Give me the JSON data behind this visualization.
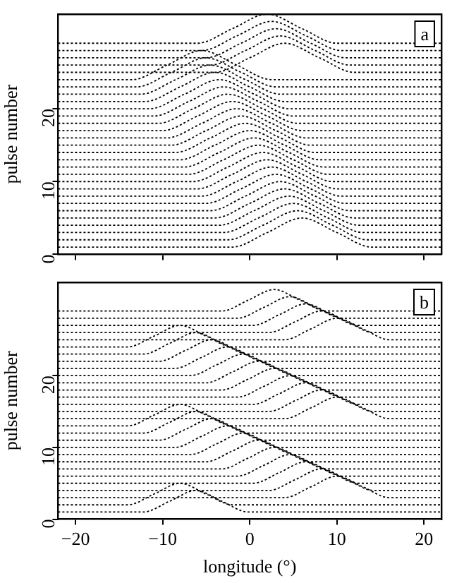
{
  "chart_data": [
    {
      "type": "line",
      "ylabel": "pulse number",
      "xlim": [
        -22,
        22
      ],
      "xticks": [
        -20,
        -10,
        0,
        10,
        20
      ],
      "ylim": [
        0,
        33
      ],
      "yticks": [
        0,
        10,
        20
      ],
      "tick_labels": "y",
      "grid": false,
      "legend": false,
      "marker": "none",
      "line_style": "dotted",
      "annotations": [
        "a"
      ],
      "series": [
        {
          "color": "#000000",
          "x": [
            -22,
            -2,
            2,
            6,
            10,
            14,
            22
          ],
          "values": [
            1,
            1,
            3,
            5,
            3,
            1,
            1
          ]
        },
        {
          "color": "#000000",
          "x": [
            -22,
            -2.5,
            1.5,
            5.5,
            9.5,
            13.5,
            22
          ],
          "values": [
            2,
            2,
            4,
            6,
            4,
            2,
            2
          ]
        },
        {
          "color": "#000000",
          "x": [
            -22,
            -3,
            1,
            5,
            9,
            13,
            22
          ],
          "values": [
            3,
            3,
            5,
            7,
            5,
            3,
            3
          ]
        },
        {
          "color": "#000000",
          "x": [
            -22,
            -3.5,
            0.5,
            4.5,
            8.5,
            12.5,
            22
          ],
          "values": [
            4,
            4,
            6,
            8,
            6,
            4,
            4
          ]
        },
        {
          "color": "#000000",
          "x": [
            -22,
            -4,
            0,
            4,
            8,
            12,
            22
          ],
          "values": [
            5,
            5,
            7,
            9,
            7,
            5,
            5
          ]
        },
        {
          "color": "#000000",
          "x": [
            -22,
            -4.5,
            -0.5,
            3.5,
            7.5,
            11.5,
            22
          ],
          "values": [
            6,
            6,
            8,
            10,
            8,
            6,
            6
          ]
        },
        {
          "color": "#000000",
          "x": [
            -22,
            -5,
            -1,
            3,
            7,
            11,
            22
          ],
          "values": [
            7,
            7,
            9,
            11,
            9,
            7,
            7
          ]
        },
        {
          "color": "#000000",
          "x": [
            -22,
            -5.5,
            -1.5,
            2.5,
            6.5,
            10.5,
            22
          ],
          "values": [
            8,
            8,
            10,
            12,
            10,
            8,
            8
          ]
        },
        {
          "color": "#000000",
          "x": [
            -22,
            -6,
            -2,
            2,
            6,
            10,
            22
          ],
          "values": [
            9,
            9,
            11,
            13,
            11,
            9,
            9
          ]
        },
        {
          "color": "#000000",
          "x": [
            -22,
            -6.5,
            -2.5,
            1.5,
            5.5,
            9.5,
            22
          ],
          "values": [
            10,
            10,
            12,
            14,
            12,
            10,
            10
          ]
        },
        {
          "color": "#000000",
          "x": [
            -22,
            -7,
            -3,
            1,
            5,
            9,
            22
          ],
          "values": [
            11,
            11,
            13,
            15,
            13,
            11,
            11
          ]
        },
        {
          "color": "#000000",
          "x": [
            -22,
            -7.5,
            -3.5,
            0.5,
            4.5,
            8.5,
            22
          ],
          "values": [
            12,
            12,
            14,
            16,
            14,
            12,
            12
          ]
        },
        {
          "color": "#000000",
          "x": [
            -22,
            -8,
            -4,
            0,
            4,
            8,
            22
          ],
          "values": [
            13,
            13,
            15,
            17,
            15,
            13,
            13
          ]
        },
        {
          "color": "#000000",
          "x": [
            -22,
            -8.5,
            -4.5,
            -0.5,
            3.5,
            7.5,
            22
          ],
          "values": [
            14,
            14,
            16,
            18,
            16,
            14,
            14
          ]
        },
        {
          "color": "#000000",
          "x": [
            -22,
            -9,
            -5,
            -1,
            3,
            7,
            22
          ],
          "values": [
            15,
            15,
            17,
            19,
            17,
            15,
            15
          ]
        },
        {
          "color": "#000000",
          "x": [
            -22,
            -9.5,
            -5.5,
            -1.5,
            2.5,
            6.5,
            22
          ],
          "values": [
            16,
            16,
            18,
            20,
            18,
            16,
            16
          ]
        },
        {
          "color": "#000000",
          "x": [
            -22,
            -10,
            -6,
            -2,
            2,
            6,
            22
          ],
          "values": [
            17,
            17,
            19,
            21,
            19,
            17,
            17
          ]
        },
        {
          "color": "#000000",
          "x": [
            -22,
            -10.5,
            -6.5,
            -2.5,
            1.5,
            5.5,
            22
          ],
          "values": [
            18,
            18,
            20,
            22,
            20,
            18,
            18
          ]
        },
        {
          "color": "#000000",
          "x": [
            -22,
            -11,
            -7,
            -3,
            1,
            5,
            22
          ],
          "values": [
            19,
            19,
            21,
            23,
            21,
            19,
            19
          ]
        },
        {
          "color": "#000000",
          "x": [
            -22,
            -11.5,
            -7.5,
            -3.5,
            0.5,
            4.5,
            22
          ],
          "values": [
            20,
            20,
            22,
            24,
            22,
            20,
            20
          ]
        },
        {
          "color": "#000000",
          "x": [
            -22,
            -12,
            -8,
            -4,
            0,
            4,
            22
          ],
          "values": [
            21,
            21,
            23,
            25,
            23,
            21,
            21
          ]
        },
        {
          "color": "#000000",
          "x": [
            -22,
            -12.5,
            -8.5,
            -4.5,
            -0.5,
            3.5,
            22
          ],
          "values": [
            22,
            22,
            24,
            26,
            24,
            22,
            22
          ]
        },
        {
          "color": "#000000",
          "x": [
            -22,
            -13,
            -9,
            -5,
            -1,
            3,
            22
          ],
          "values": [
            23,
            23,
            25,
            27,
            25,
            23,
            23
          ]
        },
        {
          "color": "#000000",
          "x": [
            -22,
            -13.5,
            -9.5,
            -5.5,
            -1.5,
            2.5,
            22
          ],
          "values": [
            24,
            24,
            26,
            28,
            26,
            24,
            24
          ]
        },
        {
          "color": "#000000",
          "x": [
            -22,
            -4,
            0,
            4,
            8,
            12,
            22
          ],
          "values": [
            25,
            25,
            27,
            29,
            27,
            25,
            25
          ]
        },
        {
          "color": "#000000",
          "x": [
            -22,
            -4.5,
            -0.5,
            3.5,
            7.5,
            11.5,
            22
          ],
          "values": [
            26,
            26,
            28,
            30,
            28,
            26,
            26
          ]
        },
        {
          "color": "#000000",
          "x": [
            -22,
            -5,
            -1,
            3,
            7,
            11,
            22
          ],
          "values": [
            27,
            27,
            29,
            31,
            29,
            27,
            27
          ]
        },
        {
          "color": "#000000",
          "x": [
            -22,
            -5.5,
            -1.5,
            2.5,
            6.5,
            10.5,
            22
          ],
          "values": [
            28,
            28,
            30,
            32,
            30,
            28,
            28
          ]
        },
        {
          "color": "#000000",
          "x": [
            -22,
            -6,
            -2,
            2,
            6,
            10,
            22
          ],
          "values": [
            29,
            29,
            31,
            33,
            31,
            29,
            29
          ]
        }
      ]
    },
    {
      "type": "line",
      "xlabel": "longitude (°)",
      "ylabel": "pulse number",
      "xlim": [
        -22,
        22
      ],
      "xticks": [
        -20,
        -10,
        0,
        10,
        20
      ],
      "ylim": [
        0,
        33
      ],
      "yticks": [
        0,
        10,
        20
      ],
      "grid": false,
      "legend": false,
      "marker": "none",
      "line_style": "dotted",
      "annotations": [
        "b"
      ],
      "series": [
        {
          "color": "#000000",
          "x": [
            -22,
            -12.2,
            -9.2,
            -6.2,
            -3.2,
            -0.2,
            22
          ],
          "values": [
            1,
            1,
            2.5,
            4,
            2.5,
            1,
            1
          ]
        },
        {
          "color": "#000000",
          "x": [
            -22,
            -14,
            -11,
            -8,
            -5,
            -2,
            22
          ],
          "values": [
            2,
            2,
            3.5,
            5,
            3.5,
            2,
            2
          ]
        },
        {
          "color": "#000000",
          "x": [
            -22,
            4,
            7,
            10,
            13,
            16,
            22
          ],
          "values": [
            3,
            3,
            4.5,
            6,
            4.5,
            3,
            3
          ]
        },
        {
          "color": "#000000",
          "x": [
            -22,
            2.2,
            5.2,
            8.2,
            11.2,
            14.2,
            22
          ],
          "values": [
            4,
            4,
            5.5,
            7,
            5.5,
            4,
            4
          ]
        },
        {
          "color": "#000000",
          "x": [
            -22,
            0.4,
            3.4,
            6.4,
            9.4,
            12.4,
            22
          ],
          "values": [
            5,
            5,
            6.5,
            8,
            6.5,
            5,
            5
          ]
        },
        {
          "color": "#000000",
          "x": [
            -22,
            -1.4,
            1.6,
            4.6,
            7.6,
            10.6,
            22
          ],
          "values": [
            6,
            6,
            7.5,
            9,
            7.5,
            6,
            6
          ]
        },
        {
          "color": "#000000",
          "x": [
            -22,
            -3.2,
            -0.2,
            2.8,
            5.8,
            8.8,
            22
          ],
          "values": [
            7,
            7,
            8.5,
            10,
            8.5,
            7,
            7
          ]
        },
        {
          "color": "#000000",
          "x": [
            -22,
            -5,
            -2,
            1,
            4,
            7,
            22
          ],
          "values": [
            8,
            8,
            9.5,
            11,
            9.5,
            8,
            8
          ]
        },
        {
          "color": "#000000",
          "x": [
            -22,
            -6.8,
            -3.8,
            -0.8,
            2.2,
            5.2,
            22
          ],
          "values": [
            9,
            9,
            10.5,
            12,
            10.5,
            9,
            9
          ]
        },
        {
          "color": "#000000",
          "x": [
            -22,
            -8.6,
            -5.6,
            -2.6,
            0.4,
            3.4,
            22
          ],
          "values": [
            10,
            10,
            11.5,
            13,
            11.5,
            10,
            10
          ]
        },
        {
          "color": "#000000",
          "x": [
            -22,
            -10.4,
            -7.4,
            -4.4,
            -1.4,
            1.6,
            22
          ],
          "values": [
            11,
            11,
            12.5,
            14,
            12.5,
            11,
            11
          ]
        },
        {
          "color": "#000000",
          "x": [
            -22,
            -12.2,
            -9.2,
            -6.2,
            -3.2,
            -0.2,
            22
          ],
          "values": [
            12,
            12,
            13.5,
            15,
            13.5,
            12,
            12
          ]
        },
        {
          "color": "#000000",
          "x": [
            -22,
            -14,
            -11,
            -8,
            -5,
            -2,
            22
          ],
          "values": [
            13,
            13,
            14.5,
            16,
            14.5,
            13,
            13
          ]
        },
        {
          "color": "#000000",
          "x": [
            -22,
            4,
            7,
            10,
            13,
            16,
            22
          ],
          "values": [
            14,
            14,
            15.5,
            17,
            15.5,
            14,
            14
          ]
        },
        {
          "color": "#000000",
          "x": [
            -22,
            2.2,
            5.2,
            8.2,
            11.2,
            14.2,
            22
          ],
          "values": [
            15,
            15,
            16.5,
            18,
            16.5,
            15,
            15
          ]
        },
        {
          "color": "#000000",
          "x": [
            -22,
            0.4,
            3.4,
            6.4,
            9.4,
            12.4,
            22
          ],
          "values": [
            16,
            16,
            17.5,
            19,
            17.5,
            16,
            16
          ]
        },
        {
          "color": "#000000",
          "x": [
            -22,
            -1.4,
            1.6,
            4.6,
            7.6,
            10.6,
            22
          ],
          "values": [
            17,
            17,
            18.5,
            20,
            18.5,
            17,
            17
          ]
        },
        {
          "color": "#000000",
          "x": [
            -22,
            -3.2,
            -0.2,
            2.8,
            5.8,
            8.8,
            22
          ],
          "values": [
            18,
            18,
            19.5,
            21,
            19.5,
            18,
            18
          ]
        },
        {
          "color": "#000000",
          "x": [
            -22,
            -5,
            -2,
            1,
            4,
            7,
            22
          ],
          "values": [
            19,
            19,
            20.5,
            22,
            20.5,
            19,
            19
          ]
        },
        {
          "color": "#000000",
          "x": [
            -22,
            -6.8,
            -3.8,
            -0.8,
            2.2,
            5.2,
            22
          ],
          "values": [
            20,
            20,
            21.5,
            23,
            21.5,
            20,
            20
          ]
        },
        {
          "color": "#000000",
          "x": [
            -22,
            -8.6,
            -5.6,
            -2.6,
            0.4,
            3.4,
            22
          ],
          "values": [
            21,
            21,
            22.5,
            24,
            22.5,
            21,
            21
          ]
        },
        {
          "color": "#000000",
          "x": [
            -22,
            -10.4,
            -7.4,
            -4.4,
            -1.4,
            1.6,
            22
          ],
          "values": [
            22,
            22,
            23.5,
            25,
            23.5,
            22,
            22
          ]
        },
        {
          "color": "#000000",
          "x": [
            -22,
            -12.2,
            -9.2,
            -6.2,
            -3.2,
            -0.2,
            22
          ],
          "values": [
            23,
            23,
            24.5,
            26,
            24.5,
            23,
            23
          ]
        },
        {
          "color": "#000000",
          "x": [
            -22,
            -14,
            -11,
            -8,
            -5,
            -2,
            22
          ],
          "values": [
            24,
            24,
            25.5,
            27,
            25.5,
            24,
            24
          ]
        },
        {
          "color": "#000000",
          "x": [
            -22,
            4,
            7,
            10,
            13,
            16,
            22
          ],
          "values": [
            25,
            25,
            26.5,
            28,
            26.5,
            25,
            25
          ]
        },
        {
          "color": "#000000",
          "x": [
            -22,
            2.2,
            5.2,
            8.2,
            11.2,
            14.2,
            22
          ],
          "values": [
            26,
            26,
            27.5,
            29,
            27.5,
            26,
            26
          ]
        },
        {
          "color": "#000000",
          "x": [
            -22,
            0.4,
            3.4,
            6.4,
            9.4,
            12.4,
            22
          ],
          "values": [
            27,
            27,
            28.5,
            30,
            28.5,
            27,
            27
          ]
        },
        {
          "color": "#000000",
          "x": [
            -22,
            -1.4,
            1.6,
            4.6,
            7.6,
            10.6,
            22
          ],
          "values": [
            28,
            28,
            29.5,
            31,
            29.5,
            28,
            28
          ]
        },
        {
          "color": "#000000",
          "x": [
            -22,
            -3.2,
            -0.2,
            2.8,
            5.8,
            8.8,
            22
          ],
          "values": [
            29,
            29,
            30.5,
            32,
            30.5,
            29,
            29
          ]
        }
      ]
    }
  ]
}
